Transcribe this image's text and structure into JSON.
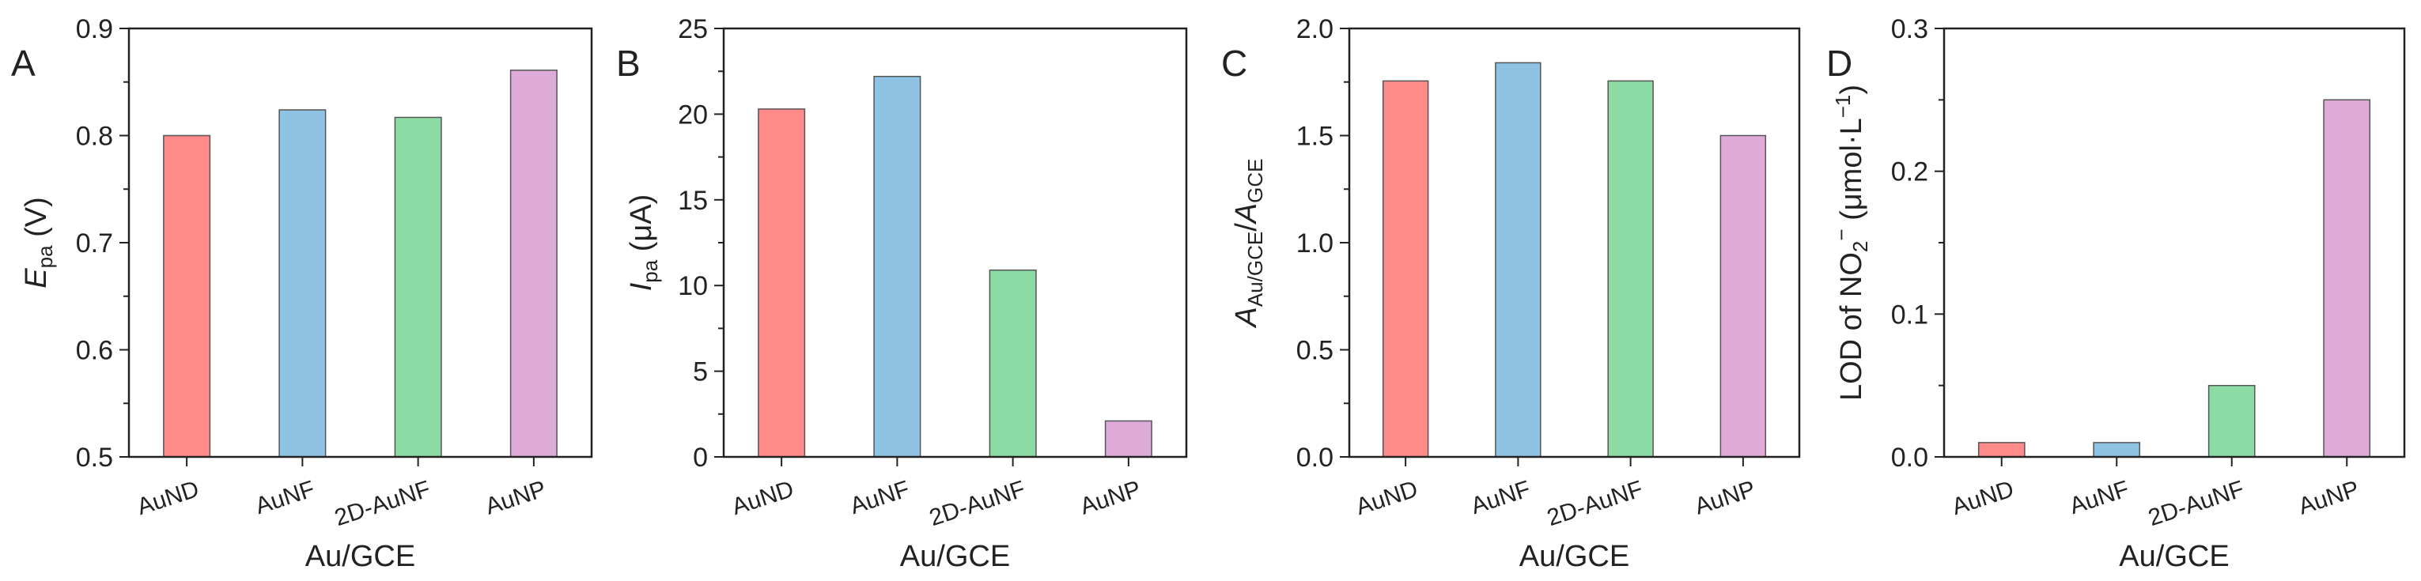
{
  "figure": {
    "colors": [
      "#ff8a8a",
      "#8ec3e3",
      "#8ddba5",
      "#deaad8"
    ],
    "bar_stroke": "#555555"
  },
  "chart_data": [
    {
      "type": "bar",
      "panel": "A",
      "categories": [
        "AuND",
        "AuNF",
        "2D-AuNF",
        "AuNP"
      ],
      "values": [
        0.8,
        0.824,
        0.817,
        0.861
      ],
      "xlabel": "Au/GCE",
      "ylabel": {
        "main": "E",
        "sub": "pa",
        "tail": " (V)"
      },
      "ylim": [
        0.5,
        0.9
      ],
      "yticks": [
        0.5,
        0.6,
        0.7,
        0.8,
        0.9
      ],
      "ytick_labels": [
        "0.5",
        "0.6",
        "0.7",
        "0.8",
        "0.9"
      ]
    },
    {
      "type": "bar",
      "panel": "B",
      "categories": [
        "AuND",
        "AuNF",
        "2D-AuNF",
        "AuNP"
      ],
      "values": [
        20.3,
        22.2,
        10.9,
        2.1
      ],
      "xlabel": "Au/GCE",
      "ylabel": {
        "main": "I",
        "sub": "pa",
        "tail": " (μA)"
      },
      "ylim": [
        0,
        25
      ],
      "yticks": [
        0,
        5,
        10,
        15,
        20,
        25
      ],
      "ytick_labels": [
        "0",
        "5",
        "10",
        "15",
        "20",
        "25"
      ]
    },
    {
      "type": "bar",
      "panel": "C",
      "categories": [
        "AuND",
        "AuNF",
        "2D-AuNF",
        "AuNP"
      ],
      "values": [
        1.755,
        1.84,
        1.755,
        1.5
      ],
      "xlabel": "Au/GCE",
      "ylabel": {
        "main": "A",
        "sub": "Au/GCE",
        "mid": "/",
        "main2": "A",
        "sub2": "GCE"
      },
      "ylim": [
        0,
        2.0
      ],
      "yticks": [
        0,
        0.5,
        1.0,
        1.5,
        2.0
      ],
      "ytick_labels": [
        "0.0",
        "0.5",
        "1.0",
        "1.5",
        "2.0"
      ]
    },
    {
      "type": "bar",
      "panel": "D",
      "categories": [
        "AuND",
        "AuNF",
        "2D-AuNF",
        "AuNP"
      ],
      "values": [
        0.01,
        0.01,
        0.05,
        0.25
      ],
      "xlabel": "Au/GCE",
      "ylabel": {
        "main": "LOD of NO",
        "sub": "2",
        "sup": "−",
        "tail": " (μmol·L",
        "sup2": "−1",
        "tail2": ")"
      },
      "ylim": [
        0,
        0.3
      ],
      "yticks": [
        0,
        0.1,
        0.2,
        0.3
      ],
      "ytick_labels": [
        "0.0",
        "0.1",
        "0.2",
        "0.3"
      ]
    }
  ]
}
